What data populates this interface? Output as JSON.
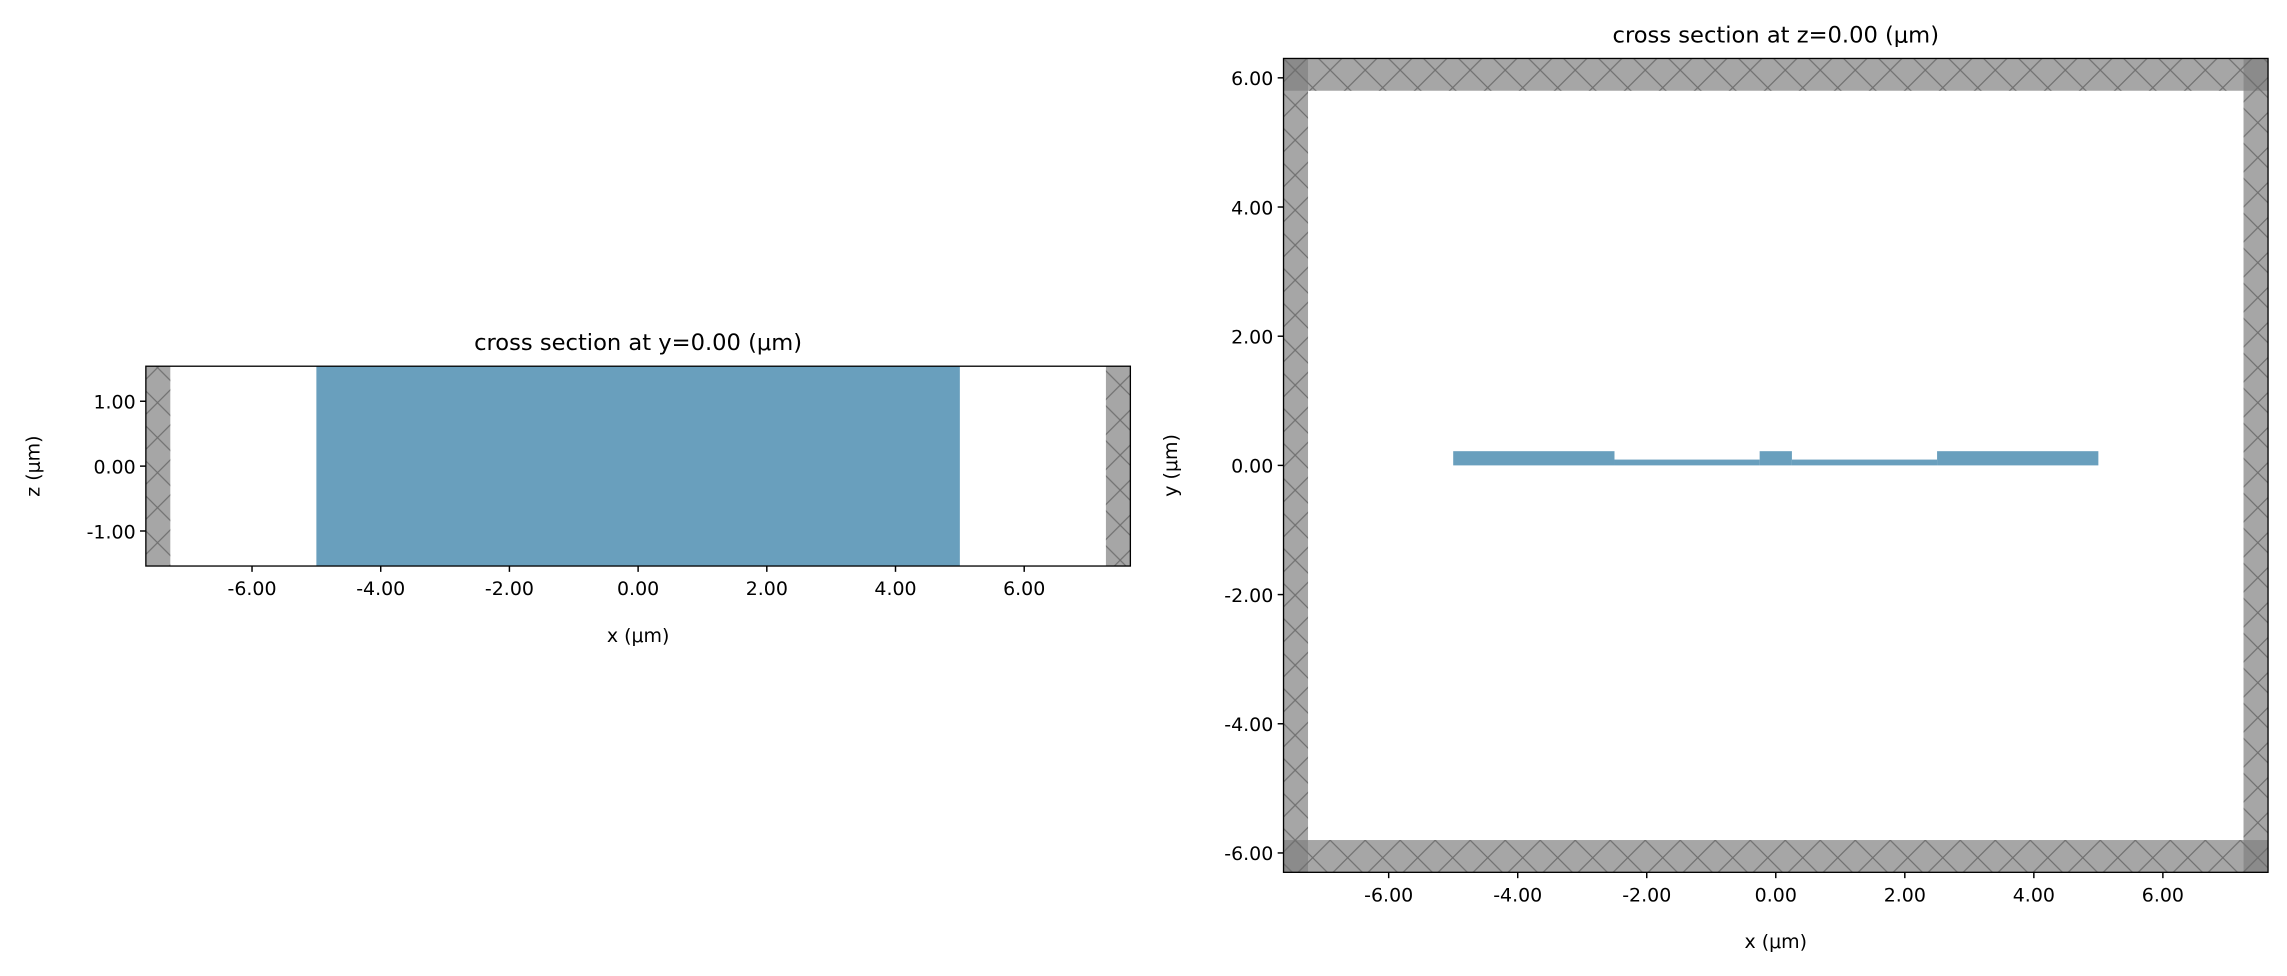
{
  "chart_data": [
    {
      "type": "cross_section",
      "title": "cross section at y=0.00 (μm)",
      "xlabel": "x (μm)",
      "ylabel": "z (μm)",
      "xlim": [
        -7.65,
        7.65
      ],
      "ylim": [
        -1.54,
        1.54
      ],
      "xticks": [
        {
          "value": -6,
          "label": "-6.00"
        },
        {
          "value": -4,
          "label": "-4.00"
        },
        {
          "value": -2,
          "label": "-2.00"
        },
        {
          "value": 0,
          "label": "0.00"
        },
        {
          "value": 2,
          "label": "2.00"
        },
        {
          "value": 4,
          "label": "4.00"
        },
        {
          "value": 6,
          "label": "6.00"
        }
      ],
      "yticks": [
        {
          "value": -1,
          "label": "-1.00"
        },
        {
          "value": 0,
          "label": "0.00"
        },
        {
          "value": 1,
          "label": "1.00"
        }
      ],
      "rects": [
        {
          "x": [
            -5,
            5
          ],
          "y": [
            -1.54,
            1.54
          ],
          "color": "#699fbd"
        },
        {
          "x": [
            -7.65,
            -7.27
          ],
          "y": [
            -1.54,
            1.54
          ],
          "color": "#808080",
          "hatch": "x"
        },
        {
          "x": [
            7.27,
            7.65
          ],
          "y": [
            -1.54,
            1.54
          ],
          "color": "#808080",
          "hatch": "x"
        }
      ]
    },
    {
      "type": "cross_section",
      "title": "cross section at z=0.00 (μm)",
      "xlabel": "x (μm)",
      "ylabel": "y (μm)",
      "xlim": [
        -7.63,
        7.63
      ],
      "ylim": [
        -6.3,
        6.3
      ],
      "xticks": [
        {
          "value": -6,
          "label": "-6.00"
        },
        {
          "value": -4,
          "label": "-4.00"
        },
        {
          "value": -2,
          "label": "-2.00"
        },
        {
          "value": 0,
          "label": "0.00"
        },
        {
          "value": 2,
          "label": "2.00"
        },
        {
          "value": 4,
          "label": "4.00"
        },
        {
          "value": 6,
          "label": "6.00"
        }
      ],
      "yticks": [
        {
          "value": -6,
          "label": "-6.00"
        },
        {
          "value": -4,
          "label": "-4.00"
        },
        {
          "value": -2,
          "label": "-2.00"
        },
        {
          "value": 0,
          "label": "0.00"
        },
        {
          "value": 2,
          "label": "2.00"
        },
        {
          "value": 4,
          "label": "4.00"
        },
        {
          "value": 6,
          "label": "6.00"
        }
      ],
      "rects": [
        {
          "x": [
            -5,
            -2.5
          ],
          "y": [
            0,
            0.22
          ],
          "color": "#699fbd"
        },
        {
          "x": [
            -2.5,
            -0.25
          ],
          "y": [
            0,
            0.09
          ],
          "color": "#699fbd"
        },
        {
          "x": [
            -0.25,
            0.25
          ],
          "y": [
            0,
            0.22
          ],
          "color": "#699fbd"
        },
        {
          "x": [
            0.25,
            2.5
          ],
          "y": [
            0,
            0.09
          ],
          "color": "#699fbd"
        },
        {
          "x": [
            2.5,
            5
          ],
          "y": [
            0,
            0.22
          ],
          "color": "#699fbd"
        },
        {
          "x": [
            -7.63,
            -7.25
          ],
          "y": [
            -6.3,
            6.3
          ],
          "color": "#808080",
          "hatch": "x"
        },
        {
          "x": [
            7.25,
            7.63
          ],
          "y": [
            -6.3,
            6.3
          ],
          "color": "#808080",
          "hatch": "x"
        },
        {
          "x": [
            -7.63,
            7.63
          ],
          "y": [
            5.8,
            6.3
          ],
          "color": "#808080",
          "hatch": "x"
        },
        {
          "x": [
            -7.63,
            7.63
          ],
          "y": [
            -6.3,
            -5.8
          ],
          "color": "#808080",
          "hatch": "x"
        }
      ]
    }
  ]
}
